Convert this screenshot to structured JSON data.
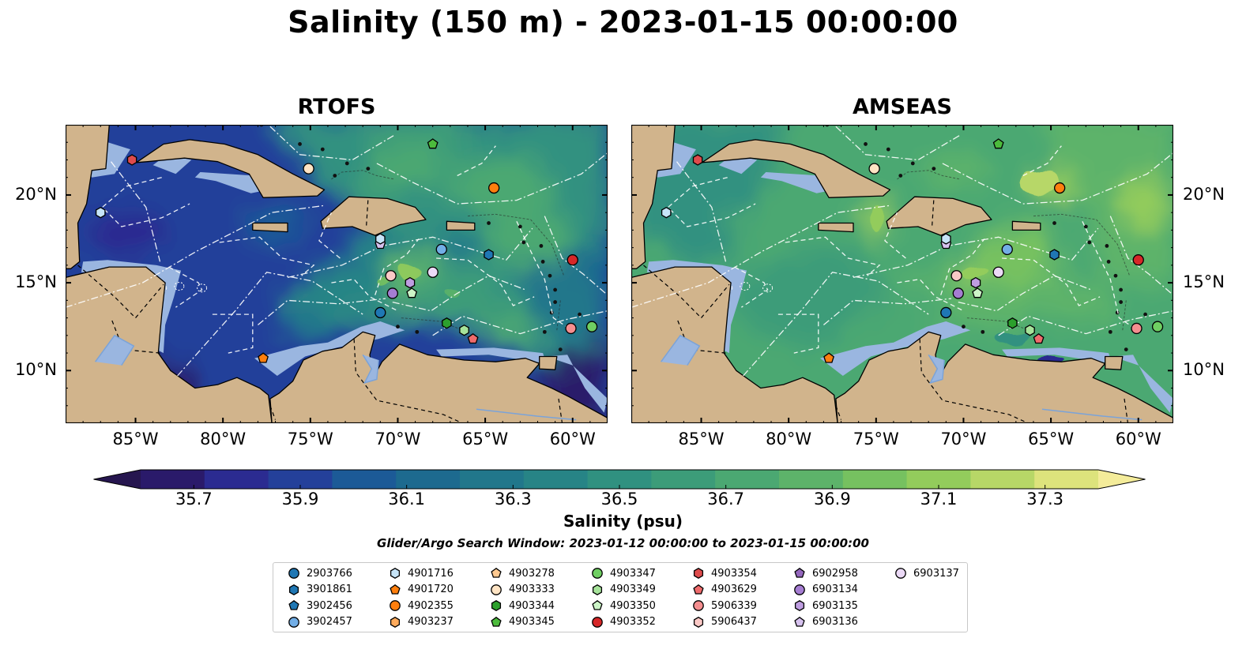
{
  "figure": {
    "title": "Salinity (150 m) - 2023-01-15 00:00:00",
    "left_panel_title": "RTOFS",
    "right_panel_title": "AMSEAS",
    "search_window": "Glider/Argo Search Window: 2023-01-12 00:00:00 to 2023-01-15 00:00:00"
  },
  "chart_data": {
    "type": "heatmap",
    "variable": "Salinity (150 m)",
    "panels": [
      "RTOFS",
      "AMSEAS"
    ],
    "extent": {
      "lon": [
        -89,
        -58
      ],
      "lat": [
        7,
        24
      ]
    },
    "x_ticks": [
      {
        "value": -85,
        "label": "85°W"
      },
      {
        "value": -80,
        "label": "80°W"
      },
      {
        "value": -75,
        "label": "75°W"
      },
      {
        "value": -70,
        "label": "70°W"
      },
      {
        "value": -65,
        "label": "65°W"
      },
      {
        "value": -60,
        "label": "60°W"
      }
    ],
    "y_ticks": [
      {
        "value": 20,
        "label": "20°N"
      },
      {
        "value": 15,
        "label": "15°N"
      },
      {
        "value": 10,
        "label": "10°N"
      }
    ],
    "colorbar": {
      "label": "Salinity (psu)",
      "min": 35.6,
      "max": 37.4,
      "extend": "both",
      "tick_values": [
        35.7,
        35.9,
        36.1,
        36.3,
        36.5,
        36.7,
        36.9,
        37.1,
        37.3
      ],
      "tick_labels": [
        "35.7",
        "35.9",
        "36.1",
        "36.3",
        "36.5",
        "36.7",
        "36.9",
        "37.1",
        "37.3"
      ],
      "colors": [
        "#2a1a6a",
        "#2b2b91",
        "#24409a",
        "#1c5a97",
        "#1d6a8f",
        "#21778b",
        "#278486",
        "#309180",
        "#3c9c79",
        "#4ba872",
        "#5db36a",
        "#76c160",
        "#93cc5c",
        "#b7d767",
        "#dde37c"
      ],
      "under_color": "#26164f",
      "over_color": "#f4ec9a"
    },
    "grid": true,
    "colors": {
      "land": "#d1b48c",
      "ocean_background": "#9ab6e0",
      "gridlines": "#ffffff",
      "coast": "#000000",
      "borders": "#000000"
    },
    "legend_placement": "bottom",
    "series": [
      {
        "name": "2903766",
        "marker": "circle",
        "color": "#1f77b4",
        "lon": -71.0,
        "lat": 13.3
      },
      {
        "name": "3901861",
        "marker": "hexagon",
        "color": "#1f77b4",
        "lon": -64.8,
        "lat": 16.6
      },
      {
        "name": "3902456",
        "marker": "pentagon",
        "color": "#1f77b4",
        "lon": null,
        "lat": null
      },
      {
        "name": "3902457",
        "marker": "circle",
        "color": "#72aee6",
        "lon": -67.5,
        "lat": 16.9
      },
      {
        "name": "4901716",
        "marker": "hexagon",
        "color": "#c6e4f8",
        "lon": -87.0,
        "lat": 19.0
      },
      {
        "name": "4901720",
        "marker": "pentagon",
        "color": "#ff7f0e",
        "lon": -77.7,
        "lat": 10.7
      },
      {
        "name": "4902355",
        "marker": "circle",
        "color": "#ff7f0e",
        "lon": -64.5,
        "lat": 20.4
      },
      {
        "name": "4903237",
        "marker": "hexagon",
        "color": "#ffab5c",
        "lon": null,
        "lat": null
      },
      {
        "name": "4903278",
        "marker": "pentagon",
        "color": "#ffc990",
        "lon": null,
        "lat": null
      },
      {
        "name": "4903333",
        "marker": "circle",
        "color": "#ffe4c4",
        "lon": -75.1,
        "lat": 21.5
      },
      {
        "name": "4903344",
        "marker": "hexagon",
        "color": "#2ca02c",
        "lon": -67.2,
        "lat": 12.7
      },
      {
        "name": "4903345",
        "marker": "pentagon",
        "color": "#4cbb3c",
        "lon": -68.0,
        "lat": 22.9
      },
      {
        "name": "4903347",
        "marker": "circle",
        "color": "#6fcf62",
        "lon": -58.9,
        "lat": 12.5
      },
      {
        "name": "4903349",
        "marker": "hexagon",
        "color": "#a6e39a",
        "lon": -66.2,
        "lat": 12.3
      },
      {
        "name": "4903350",
        "marker": "pentagon",
        "color": "#ccf5c7",
        "lon": -69.2,
        "lat": 14.4
      },
      {
        "name": "4903352",
        "marker": "circle",
        "color": "#d62728",
        "lon": -60.0,
        "lat": 16.3
      },
      {
        "name": "4903354",
        "marker": "hexagon",
        "color": "#de4b4c",
        "lon": -85.2,
        "lat": 22.0
      },
      {
        "name": "4903629",
        "marker": "pentagon",
        "color": "#ef6b6c",
        "lon": -65.7,
        "lat": 11.8
      },
      {
        "name": "5906339",
        "marker": "circle",
        "color": "#f48e8f",
        "lon": -60.1,
        "lat": 12.4
      },
      {
        "name": "5906437",
        "marker": "hexagon",
        "color": "#fbc9c6",
        "lon": null,
        "lat": null
      },
      {
        "name": "6902958",
        "marker": "pentagon",
        "color": "#9467bd",
        "lon": null,
        "lat": null
      },
      {
        "name": "6903134",
        "marker": "circle",
        "color": "#a57dd2",
        "lon": -70.3,
        "lat": 14.4
      },
      {
        "name": "6903135",
        "marker": "hexagon",
        "color": "#be9de0",
        "lon": -69.3,
        "lat": 15.0
      },
      {
        "name": "6903136",
        "marker": "pentagon",
        "color": "#d7c2ef",
        "lon": -71.0,
        "lat": 17.2
      },
      {
        "name": "6903137",
        "marker": "circle",
        "color": "#ecdaf7",
        "lon": -68.0,
        "lat": 15.6
      }
    ],
    "extra_markers": [
      {
        "marker": "circle",
        "color": "#fbc9c6",
        "lon": -70.4,
        "lat": 15.4
      },
      {
        "marker": "hexagon",
        "color": "#c6e4f8",
        "lon": -71.0,
        "lat": 17.5
      }
    ]
  }
}
